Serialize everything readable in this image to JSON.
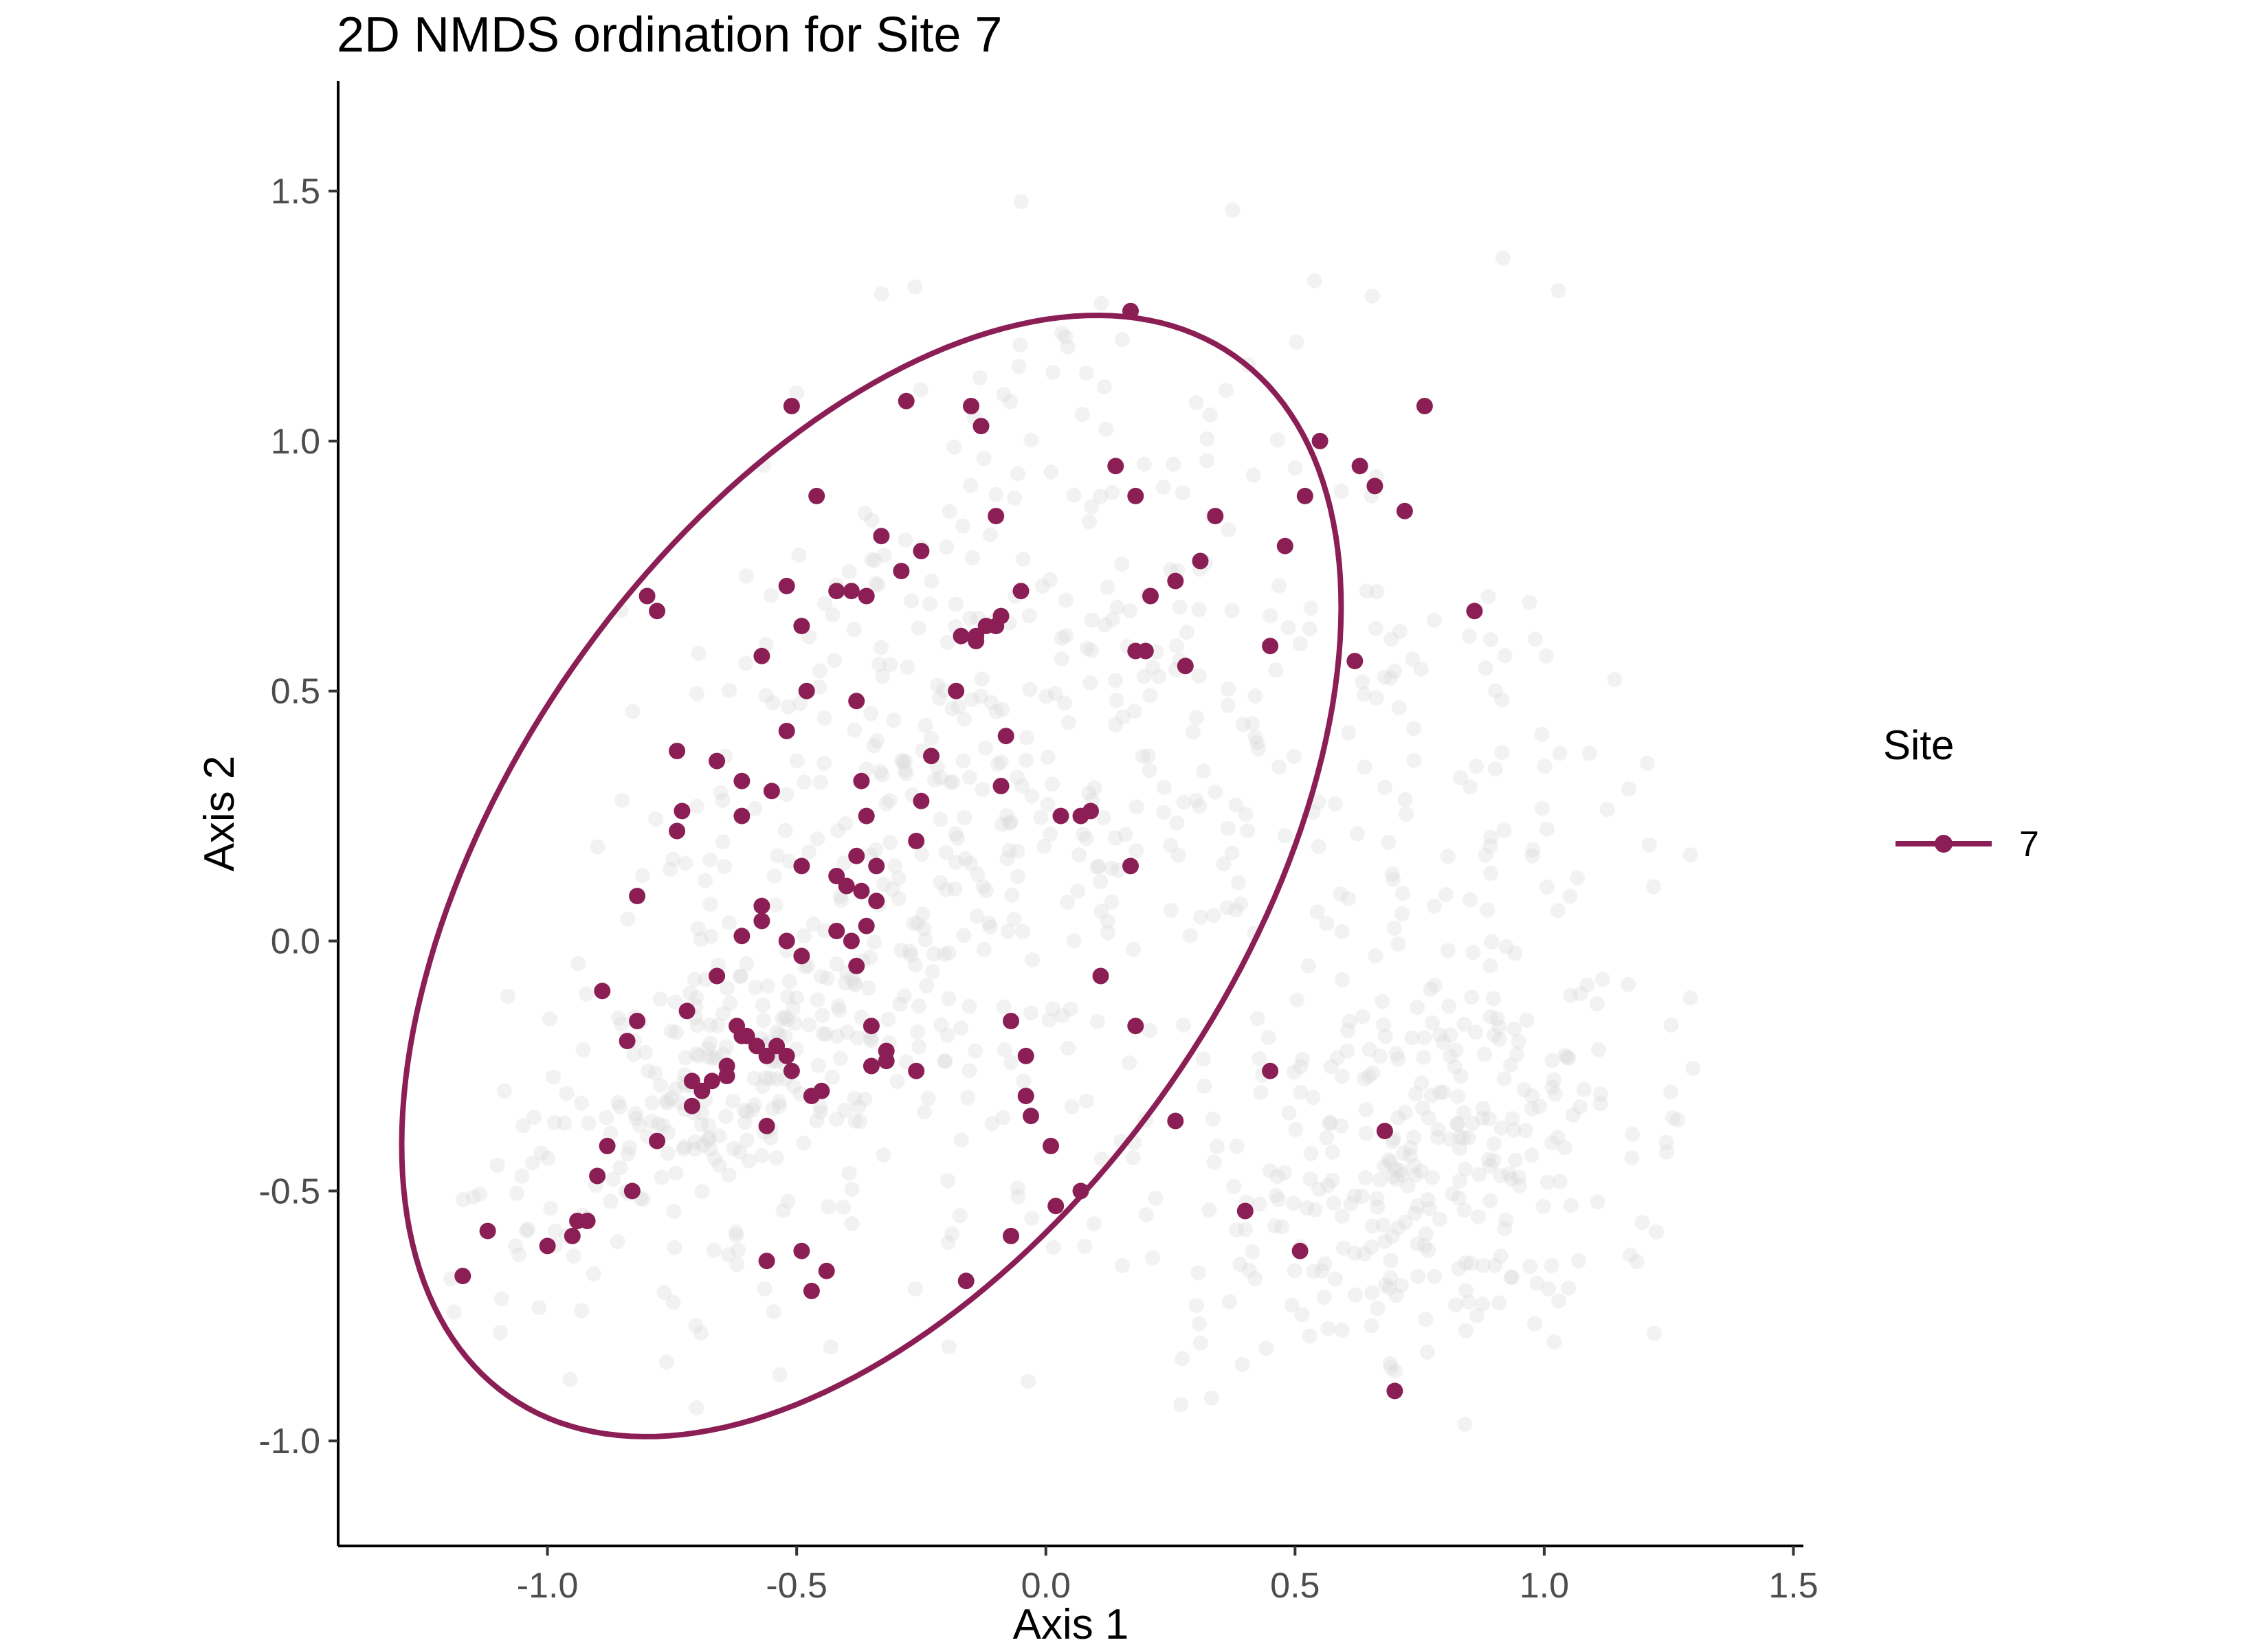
{
  "chart_data": {
    "type": "scatter",
    "title": "2D NMDS ordination for Site 7",
    "xlabel": "Axis 1",
    "ylabel": "Axis 2",
    "xlim": [
      -1.42,
      1.52
    ],
    "ylim": [
      -1.21,
      1.72
    ],
    "x_ticks": [
      -1.0,
      -0.5,
      0.0,
      0.5,
      1.0,
      1.5
    ],
    "x_tick_labels": [
      "-1.0",
      "-0.5",
      "0.0",
      "0.5",
      "1.0",
      "1.5"
    ],
    "y_ticks": [
      -1.0,
      -0.5,
      0.0,
      0.5,
      1.0,
      1.5
    ],
    "y_tick_labels": [
      "-1.0",
      "-0.5",
      "0.0",
      "0.5",
      "1.0",
      "1.5"
    ],
    "grid": false,
    "legend": {
      "title": "Site",
      "position": "right",
      "entries": [
        "7"
      ]
    },
    "colors": {
      "highlight": "#8b1f55",
      "background_points": "#d9d9d9"
    },
    "ellipse": {
      "series": "7",
      "center": [
        -0.35,
        0.13
      ],
      "semi_major": 1.27,
      "semi_minor": 0.73,
      "angle_deg": 55
    },
    "background_points_description": "approximately 1100 light grey points for all other sites, spanning x from -1.2 to 1.3 and y from -1.0 to 1.5",
    "series": [
      {
        "name": "7",
        "points": [
          [
            0.17,
            1.26
          ],
          [
            -0.51,
            1.07
          ],
          [
            -0.28,
            1.08
          ],
          [
            -0.15,
            1.07
          ],
          [
            -0.13,
            1.03
          ],
          [
            0.76,
            1.07
          ],
          [
            0.55,
            1.0
          ],
          [
            0.63,
            0.95
          ],
          [
            0.66,
            0.91
          ],
          [
            0.72,
            0.86
          ],
          [
            0.52,
            0.89
          ],
          [
            0.14,
            0.95
          ],
          [
            0.18,
            0.89
          ],
          [
            -0.46,
            0.89
          ],
          [
            -0.1,
            0.85
          ],
          [
            0.34,
            0.85
          ],
          [
            -0.33,
            0.81
          ],
          [
            -0.25,
            0.78
          ],
          [
            0.31,
            0.76
          ],
          [
            0.48,
            0.79
          ],
          [
            -0.29,
            0.74
          ],
          [
            0.26,
            0.72
          ],
          [
            -0.52,
            0.71
          ],
          [
            -0.42,
            0.7
          ],
          [
            -0.39,
            0.7
          ],
          [
            -0.36,
            0.69
          ],
          [
            -0.8,
            0.69
          ],
          [
            0.21,
            0.69
          ],
          [
            -0.05,
            0.7
          ],
          [
            -0.78,
            0.66
          ],
          [
            -0.09,
            0.65
          ],
          [
            -0.1,
            0.63
          ],
          [
            -0.12,
            0.63
          ],
          [
            -0.14,
            0.61
          ],
          [
            -0.17,
            0.61
          ],
          [
            -0.14,
            0.6
          ],
          [
            0.86,
            0.66
          ],
          [
            -0.49,
            0.63
          ],
          [
            -0.57,
            0.57
          ],
          [
            0.18,
            0.58
          ],
          [
            0.2,
            0.58
          ],
          [
            0.45,
            0.59
          ],
          [
            0.62,
            0.56
          ],
          [
            0.28,
            0.55
          ],
          [
            -0.48,
            0.5
          ],
          [
            -0.18,
            0.5
          ],
          [
            -0.38,
            0.48
          ],
          [
            -0.52,
            0.42
          ],
          [
            -0.08,
            0.41
          ],
          [
            -0.74,
            0.38
          ],
          [
            -0.66,
            0.36
          ],
          [
            -0.23,
            0.37
          ],
          [
            -0.37,
            0.32
          ],
          [
            -0.61,
            0.32
          ],
          [
            -0.09,
            0.31
          ],
          [
            -0.55,
            0.3
          ],
          [
            -0.25,
            0.28
          ],
          [
            -0.73,
            0.26
          ],
          [
            -0.61,
            0.25
          ],
          [
            -0.36,
            0.25
          ],
          [
            0.03,
            0.25
          ],
          [
            0.07,
            0.25
          ],
          [
            0.09,
            0.26
          ],
          [
            -0.74,
            0.22
          ],
          [
            -0.26,
            0.2
          ],
          [
            -0.38,
            0.17
          ],
          [
            -0.49,
            0.15
          ],
          [
            -0.34,
            0.15
          ],
          [
            0.17,
            0.15
          ],
          [
            -0.42,
            0.13
          ],
          [
            -0.4,
            0.11
          ],
          [
            -0.37,
            0.1
          ],
          [
            -0.82,
            0.09
          ],
          [
            -0.34,
            0.08
          ],
          [
            -0.57,
            0.07
          ],
          [
            -0.57,
            0.04
          ],
          [
            -0.36,
            0.03
          ],
          [
            -0.42,
            0.02
          ],
          [
            -0.61,
            0.01
          ],
          [
            -0.39,
            0.0
          ],
          [
            -0.52,
            0.0
          ],
          [
            -0.49,
            -0.03
          ],
          [
            -0.38,
            -0.05
          ],
          [
            -0.66,
            -0.07
          ],
          [
            0.11,
            -0.07
          ],
          [
            -0.89,
            -0.1
          ],
          [
            -0.72,
            -0.14
          ],
          [
            -0.62,
            -0.17
          ],
          [
            -0.6,
            -0.19
          ],
          [
            -0.35,
            -0.17
          ],
          [
            -0.07,
            -0.16
          ],
          [
            0.18,
            -0.17
          ],
          [
            -0.82,
            -0.16
          ],
          [
            -0.61,
            -0.19
          ],
          [
            -0.58,
            -0.21
          ],
          [
            -0.54,
            -0.21
          ],
          [
            -0.84,
            -0.2
          ],
          [
            -0.52,
            -0.23
          ],
          [
            -0.56,
            -0.23
          ],
          [
            -0.32,
            -0.22
          ],
          [
            -0.64,
            -0.25
          ],
          [
            -0.35,
            -0.25
          ],
          [
            -0.32,
            -0.24
          ],
          [
            -0.04,
            -0.23
          ],
          [
            -0.51,
            -0.26
          ],
          [
            -0.26,
            -0.26
          ],
          [
            -0.71,
            -0.28
          ],
          [
            -0.67,
            -0.28
          ],
          [
            -0.64,
            -0.27
          ],
          [
            -0.69,
            -0.3
          ],
          [
            -0.47,
            -0.31
          ],
          [
            -0.45,
            -0.3
          ],
          [
            0.45,
            -0.26
          ],
          [
            -0.04,
            -0.31
          ],
          [
            -0.71,
            -0.33
          ],
          [
            -0.03,
            -0.35
          ],
          [
            -0.56,
            -0.37
          ],
          [
            0.26,
            -0.36
          ],
          [
            -0.88,
            -0.41
          ],
          [
            -0.78,
            -0.4
          ],
          [
            0.01,
            -0.41
          ],
          [
            0.68,
            -0.38
          ],
          [
            -0.9,
            -0.47
          ],
          [
            -0.83,
            -0.5
          ],
          [
            0.07,
            -0.5
          ],
          [
            0.02,
            -0.53
          ],
          [
            0.4,
            -0.54
          ],
          [
            -1.12,
            -0.58
          ],
          [
            -0.94,
            -0.56
          ],
          [
            -0.92,
            -0.56
          ],
          [
            -0.95,
            -0.59
          ],
          [
            -1.0,
            -0.61
          ],
          [
            -0.07,
            -0.59
          ],
          [
            -0.56,
            -0.64
          ],
          [
            -0.49,
            -0.62
          ],
          [
            0.51,
            -0.62
          ],
          [
            -1.17,
            -0.67
          ],
          [
            -0.44,
            -0.66
          ],
          [
            -0.16,
            -0.68
          ],
          [
            -0.47,
            -0.7
          ],
          [
            0.7,
            -0.9
          ]
        ]
      }
    ]
  }
}
